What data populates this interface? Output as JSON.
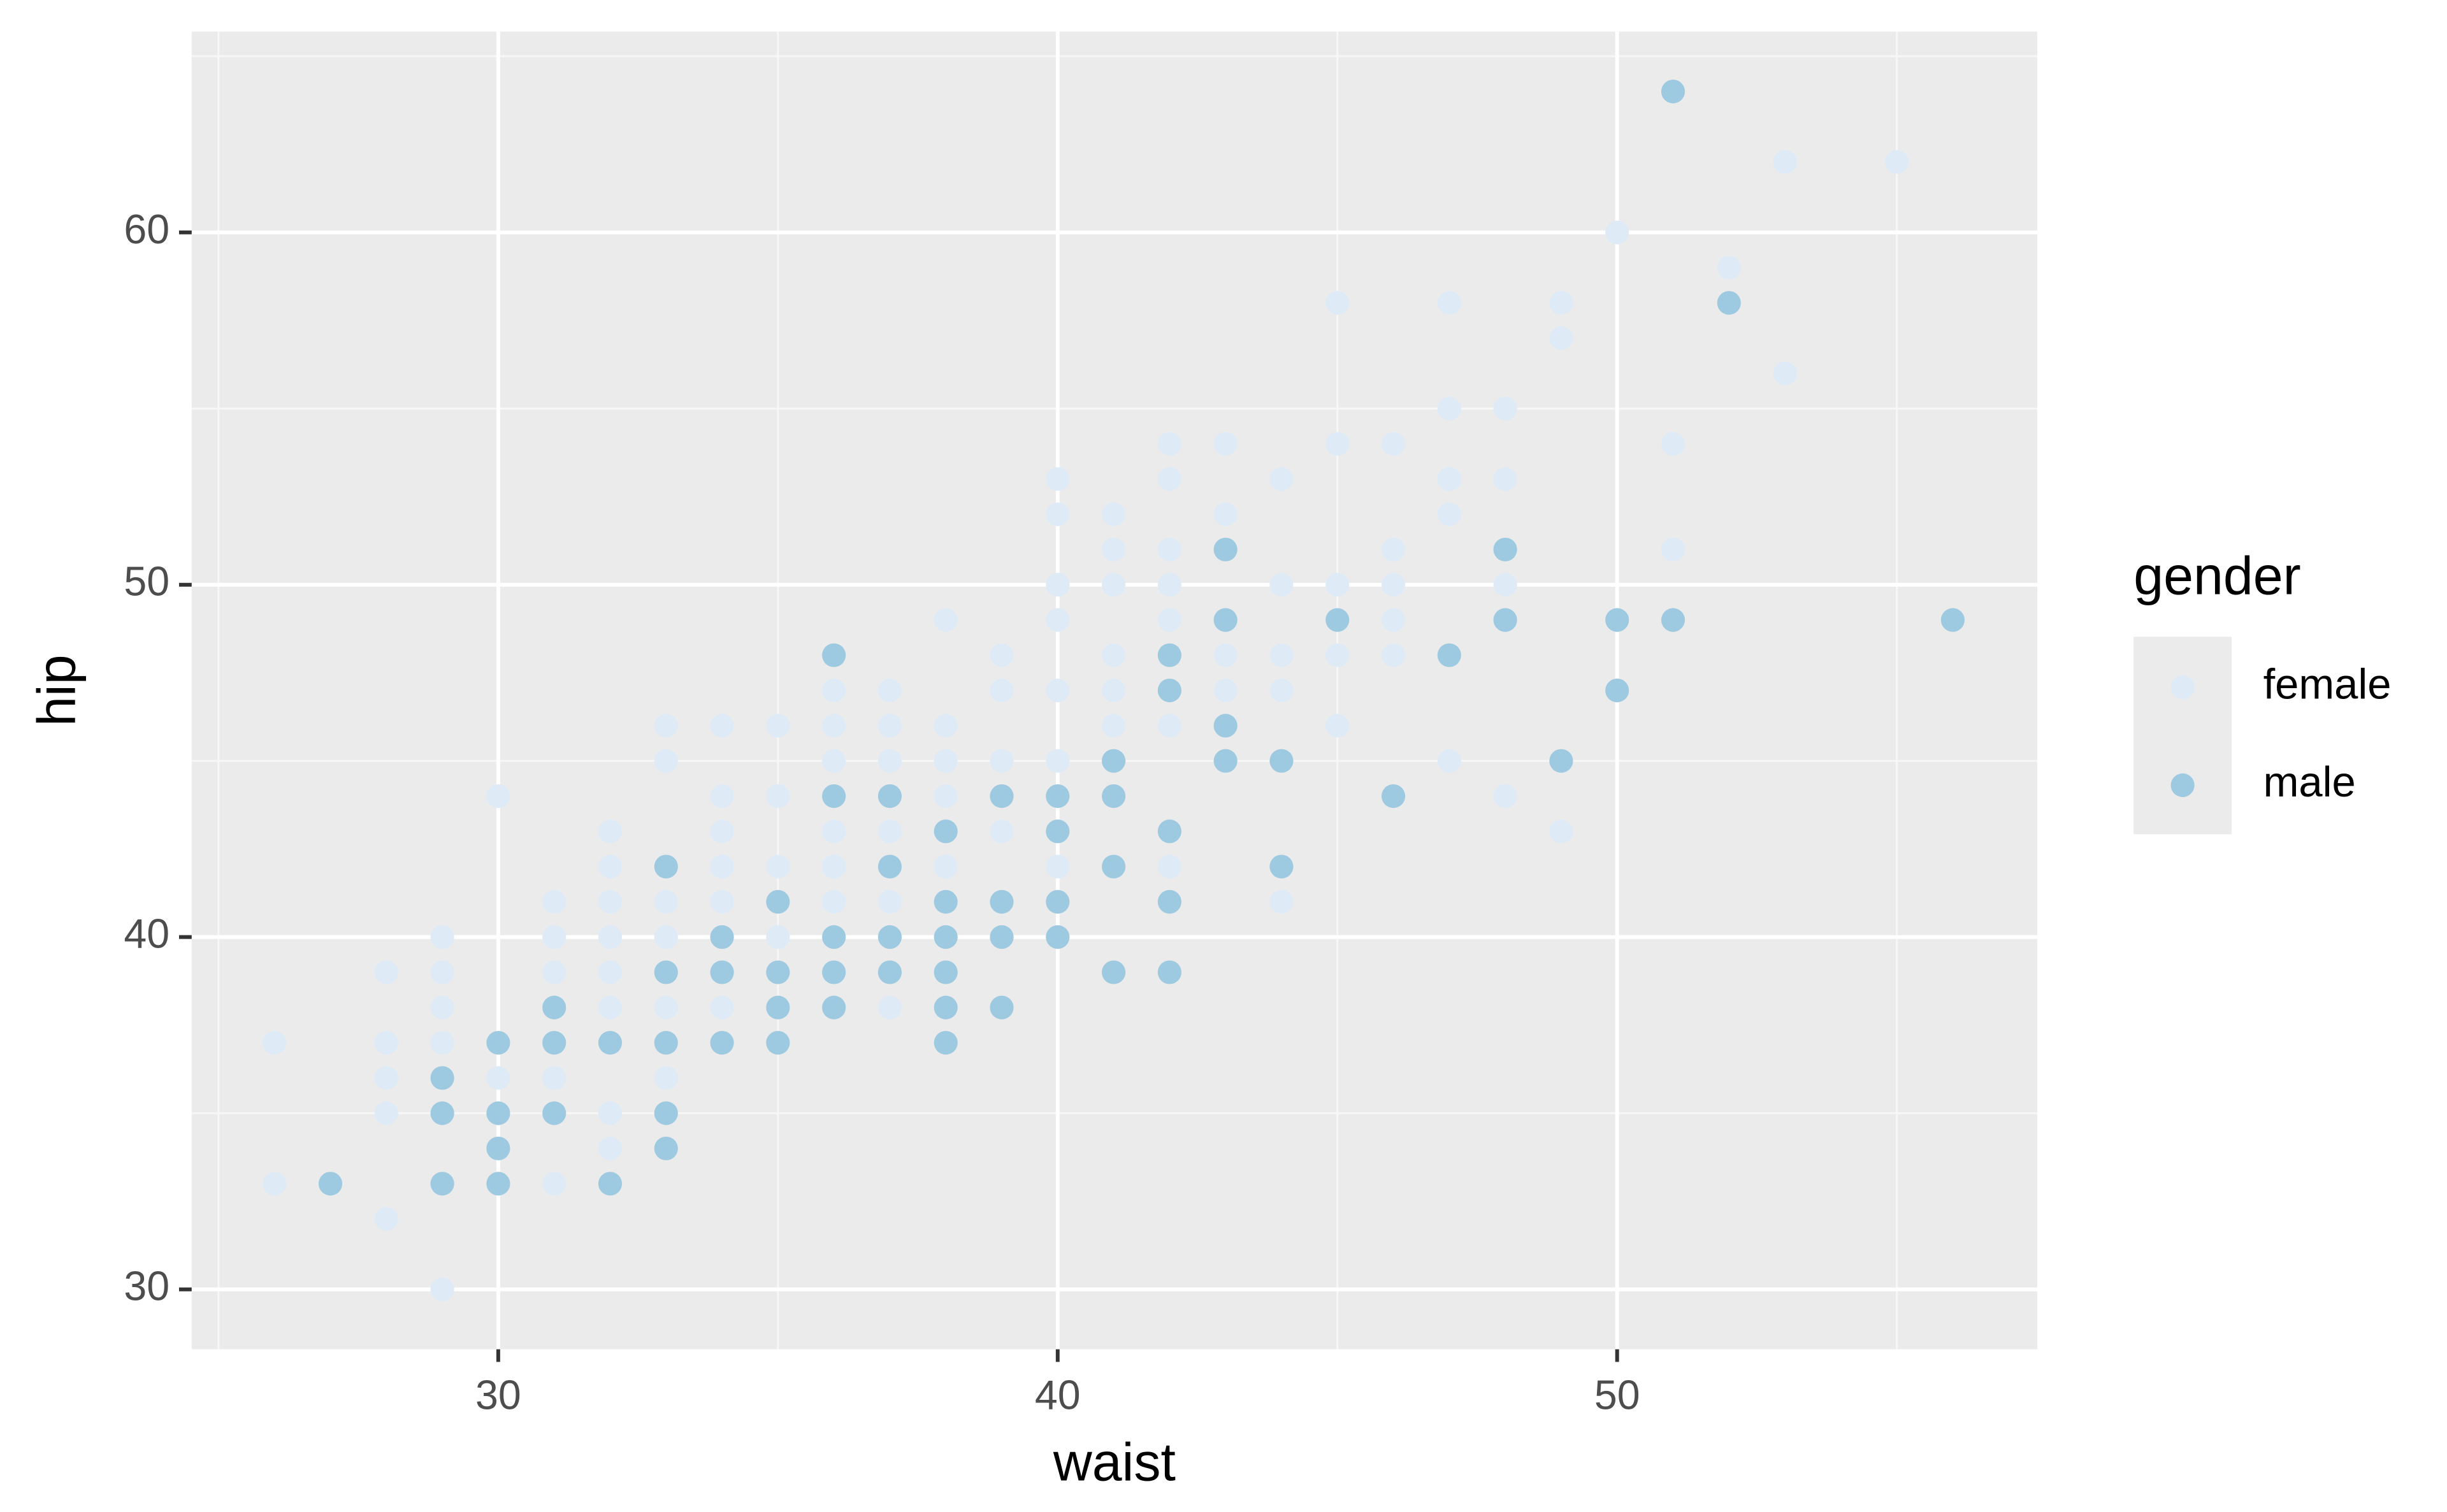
{
  "chart_data": {
    "type": "scatter",
    "x_label": "waist",
    "y_label": "hip",
    "legend_title": "gender",
    "legend": "right",
    "xlim": [
      24.52,
      57.51
    ],
    "ylim": [
      28.3,
      65.7
    ],
    "xticks": [
      30,
      40,
      50
    ],
    "yticks": [
      30,
      40,
      50,
      60
    ],
    "x_minor": [
      25,
      35,
      45,
      55
    ],
    "y_minor": [
      35,
      45,
      55,
      65
    ],
    "grid": true,
    "series": [
      {
        "name": "female",
        "color": "#deebf7",
        "x": [
          26,
          26,
          28,
          28,
          28,
          28,
          28,
          29,
          29,
          29,
          29,
          29,
          30,
          30,
          31,
          31,
          31,
          31,
          31,
          32,
          32,
          32,
          32,
          32,
          32,
          32,
          32,
          33,
          33,
          33,
          33,
          33,
          33,
          34,
          34,
          34,
          34,
          34,
          34,
          35,
          35,
          35,
          35,
          36,
          36,
          36,
          36,
          36,
          36,
          37,
          37,
          37,
          37,
          37,
          37,
          38,
          38,
          38,
          38,
          38,
          39,
          39,
          39,
          39,
          40,
          40,
          40,
          40,
          40,
          40,
          40,
          41,
          41,
          41,
          41,
          41,
          41,
          42,
          42,
          42,
          42,
          42,
          42,
          42,
          43,
          43,
          43,
          43,
          44,
          44,
          44,
          44,
          44,
          45,
          45,
          45,
          45,
          45,
          46,
          46,
          46,
          46,
          46,
          47,
          47,
          47,
          47,
          47,
          48,
          48,
          48,
          48,
          49,
          49,
          49,
          50,
          51,
          51,
          52,
          53,
          53,
          55
        ],
        "y": [
          37,
          33,
          39,
          37,
          36,
          35,
          32,
          40,
          39,
          38,
          37,
          30,
          44,
          36,
          41,
          40,
          39,
          36,
          33,
          43,
          42,
          41,
          40,
          39,
          38,
          35,
          34,
          46,
          45,
          41,
          40,
          38,
          36,
          46,
          44,
          43,
          42,
          41,
          38,
          46,
          44,
          42,
          40,
          47,
          46,
          45,
          43,
          42,
          41,
          47,
          46,
          45,
          43,
          41,
          38,
          49,
          46,
          45,
          44,
          42,
          48,
          47,
          45,
          43,
          53,
          52,
          50,
          49,
          47,
          45,
          42,
          52,
          51,
          50,
          48,
          47,
          46,
          54,
          53,
          51,
          50,
          49,
          46,
          42,
          54,
          52,
          48,
          47,
          53,
          50,
          48,
          47,
          41,
          58,
          54,
          50,
          48,
          46,
          54,
          51,
          50,
          49,
          48,
          58,
          55,
          53,
          52,
          45,
          55,
          53,
          50,
          44,
          58,
          57,
          43,
          60,
          54,
          51,
          59,
          62,
          56,
          62
        ]
      },
      {
        "name": "male",
        "color": "#9ecae1",
        "x": [
          27,
          29,
          29,
          29,
          30,
          30,
          30,
          30,
          31,
          31,
          31,
          32,
          32,
          33,
          33,
          33,
          33,
          33,
          34,
          34,
          34,
          35,
          35,
          35,
          35,
          36,
          36,
          36,
          36,
          36,
          37,
          37,
          37,
          37,
          38,
          38,
          38,
          38,
          38,
          38,
          39,
          39,
          39,
          39,
          40,
          40,
          40,
          40,
          41,
          41,
          41,
          41,
          42,
          42,
          42,
          42,
          42,
          43,
          43,
          43,
          43,
          44,
          44,
          45,
          46,
          47,
          48,
          48,
          49,
          50,
          50,
          51,
          51,
          52,
          56
        ],
        "y": [
          33,
          36,
          35,
          33,
          37,
          35,
          34,
          33,
          38,
          37,
          35,
          37,
          33,
          42,
          39,
          37,
          35,
          34,
          40,
          39,
          37,
          41,
          39,
          38,
          37,
          48,
          44,
          40,
          39,
          38,
          44,
          42,
          40,
          39,
          43,
          41,
          40,
          39,
          38,
          37,
          44,
          41,
          40,
          38,
          44,
          43,
          41,
          40,
          45,
          44,
          42,
          39,
          48,
          47,
          43,
          41,
          39,
          51,
          49,
          46,
          45,
          45,
          42,
          49,
          44,
          48,
          51,
          49,
          45,
          49,
          47,
          64,
          49,
          58,
          49
        ]
      }
    ]
  }
}
